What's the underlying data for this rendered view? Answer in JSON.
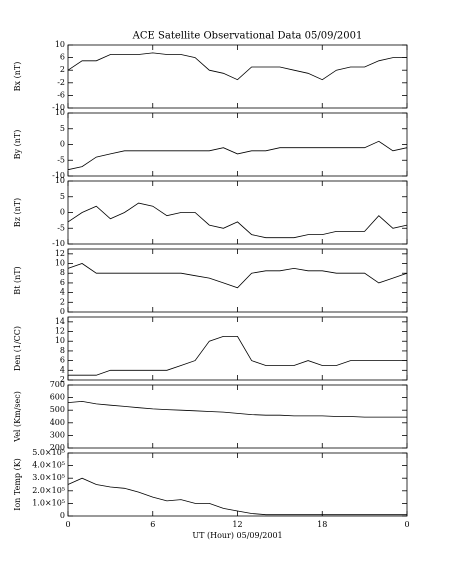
{
  "chart_data": [
    {
      "type": "line",
      "title": "ACE Satellite Observational Data   05/09/2001",
      "ylabel": "Bx (nT)",
      "x": [
        0,
        1,
        2,
        3,
        4,
        5,
        6,
        7,
        8,
        9,
        10,
        11,
        12,
        13,
        14,
        15,
        16,
        17,
        18,
        19,
        20,
        21,
        22,
        23,
        24
      ],
      "values": [
        2,
        5,
        5,
        7,
        7,
        7,
        7.5,
        7,
        7,
        6,
        2,
        1,
        -1,
        3,
        3,
        3,
        2,
        1,
        -1,
        2,
        3,
        3,
        5,
        6,
        6
      ],
      "ylim": [
        -10,
        10
      ],
      "yticks": [
        -10,
        -6,
        -2,
        2,
        6,
        10
      ],
      "color": "#000000"
    },
    {
      "type": "line",
      "ylabel": "By (nT)",
      "x": [
        0,
        1,
        2,
        3,
        4,
        5,
        6,
        7,
        8,
        9,
        10,
        11,
        12,
        13,
        14,
        15,
        16,
        17,
        18,
        19,
        20,
        21,
        22,
        23,
        24
      ],
      "values": [
        -8,
        -7,
        -4,
        -3,
        -2,
        -2,
        -2,
        -2,
        -2,
        -2,
        -2,
        -1,
        -3,
        -2,
        -2,
        -1,
        -1,
        -1,
        -1,
        -1,
        -1,
        -1,
        1,
        -2,
        -1
      ],
      "ylim": [
        -10,
        10
      ],
      "yticks": [
        -10,
        -5,
        0,
        5,
        10
      ],
      "color": "#000000"
    },
    {
      "type": "line",
      "ylabel": "Bz (nT)",
      "x": [
        0,
        1,
        2,
        3,
        4,
        5,
        6,
        7,
        8,
        9,
        10,
        11,
        12,
        13,
        14,
        15,
        16,
        17,
        18,
        19,
        20,
        21,
        22,
        23,
        24
      ],
      "values": [
        -3,
        0,
        2,
        -2,
        0,
        3,
        2,
        -1,
        0,
        0,
        -4,
        -5,
        -3,
        -7,
        -8,
        -8,
        -8,
        -7,
        -7,
        -6,
        -6,
        -6,
        -1,
        -5,
        -4
      ],
      "ylim": [
        -10,
        10
      ],
      "yticks": [
        -10,
        -5,
        0,
        5,
        10
      ],
      "color": "#000000"
    },
    {
      "type": "line",
      "ylabel": "Bt (nT)",
      "x": [
        0,
        1,
        2,
        3,
        4,
        5,
        6,
        7,
        8,
        9,
        10,
        11,
        12,
        13,
        14,
        15,
        16,
        17,
        18,
        19,
        20,
        21,
        22,
        23,
        24
      ],
      "values": [
        9,
        10,
        8,
        8,
        8,
        8,
        8,
        8,
        8,
        7.5,
        7,
        6,
        5,
        8,
        8.5,
        8.5,
        9,
        8.5,
        8.5,
        8,
        8,
        8,
        6,
        7,
        8
      ],
      "ylim": [
        0,
        13
      ],
      "yticks": [
        0,
        2,
        4,
        6,
        8,
        10,
        12
      ],
      "color": "#000000"
    },
    {
      "type": "line",
      "ylabel": "Den (1/CC)",
      "x": [
        0,
        1,
        2,
        3,
        4,
        5,
        6,
        7,
        8,
        9,
        10,
        11,
        12,
        13,
        14,
        15,
        16,
        17,
        18,
        19,
        20,
        21,
        22,
        23,
        24
      ],
      "values": [
        3,
        3,
        3,
        4,
        4,
        4,
        4,
        4,
        5,
        6,
        10,
        11,
        11,
        6,
        5,
        5,
        5,
        6,
        5,
        5,
        6,
        6,
        6,
        6,
        6
      ],
      "ylim": [
        2,
        15
      ],
      "yticks": [
        2,
        4,
        6,
        8,
        10,
        12,
        14
      ],
      "color": "#000000"
    },
    {
      "type": "line",
      "ylabel": "Vel (Km/sec)",
      "x": [
        0,
        1,
        2,
        3,
        4,
        5,
        6,
        7,
        8,
        9,
        10,
        11,
        12,
        13,
        14,
        15,
        16,
        17,
        18,
        19,
        20,
        21,
        22,
        23,
        24
      ],
      "values": [
        560,
        570,
        550,
        540,
        530,
        520,
        510,
        505,
        500,
        495,
        490,
        485,
        475,
        465,
        460,
        460,
        455,
        455,
        455,
        450,
        450,
        445,
        445,
        445,
        445
      ],
      "ylim": [
        200,
        700
      ],
      "yticks": [
        200,
        300,
        400,
        500,
        600,
        700
      ],
      "color": "#000000"
    },
    {
      "type": "line",
      "ylabel": "Ion Temp (K)",
      "xlabel": "UT (Hour)   05/09/2001",
      "x": [
        0,
        1,
        2,
        3,
        4,
        5,
        6,
        7,
        8,
        9,
        10,
        11,
        12,
        13,
        14,
        15,
        16,
        17,
        18,
        19,
        20,
        21,
        22,
        23,
        24
      ],
      "values": [
        250000,
        300000,
        250000,
        230000,
        220000,
        190000,
        150000,
        120000,
        130000,
        100000,
        100000,
        60000,
        40000,
        20000,
        10000,
        10000,
        10000,
        10000,
        10000,
        10000,
        10000,
        10000,
        10000,
        10000,
        10000
      ],
      "ylim": [
        0,
        500000
      ],
      "yticks": [
        0,
        {
          "value": 100000,
          "label": "1.0×10⁵"
        },
        {
          "value": 200000,
          "label": "2.0×10⁵"
        },
        {
          "value": 300000,
          "label": "3.0×10⁵"
        },
        {
          "value": 400000,
          "label": "4.0×10⁵"
        },
        {
          "value": 500000,
          "label": "5.0×10⁵"
        }
      ],
      "xlim": [
        0,
        24
      ],
      "xticks": [
        0,
        6,
        12,
        18,
        {
          "value": 24,
          "label": "0"
        }
      ],
      "color": "#000000"
    }
  ]
}
